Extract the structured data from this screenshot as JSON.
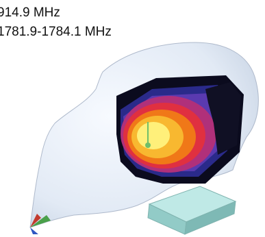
{
  "captions": {
    "line1": "914.9 MHz",
    "line2": "1781.9-1784.1 MHz"
  },
  "colors": {
    "head": "#e4ecf6",
    "head_edge": "#b8c4d6",
    "heatmap_scale": [
      "#0b0b1e",
      "#2a2a8a",
      "#5a3ab0",
      "#b0307a",
      "#e03040",
      "#f07818",
      "#f8b830",
      "#fff07a"
    ],
    "phone_block": "#a9d9d6",
    "probe": "#6fbf6a"
  },
  "icons": {
    "axes": "xyz-axes-icon",
    "probe": "antenna-probe-icon"
  }
}
